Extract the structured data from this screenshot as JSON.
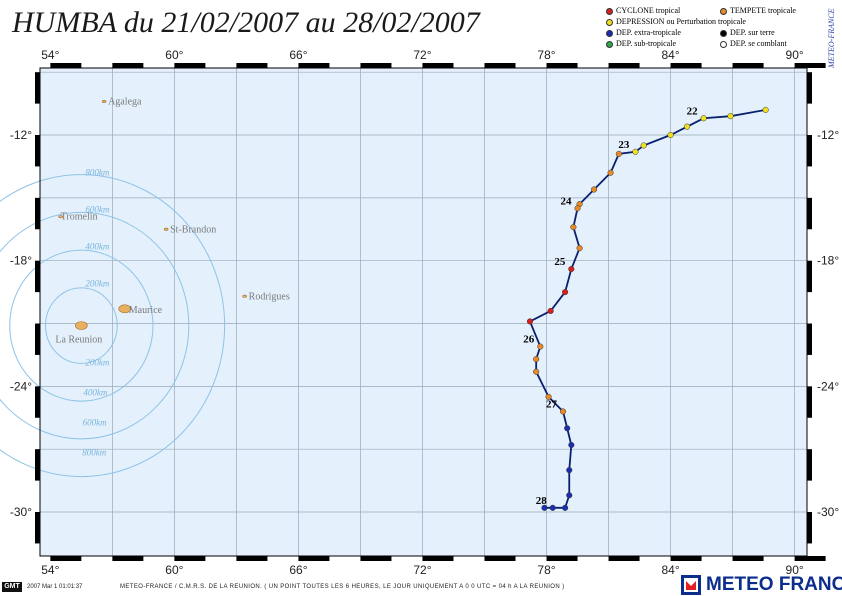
{
  "title": "HUMBA du 21/02/2007 au 28/02/2007",
  "legend": [
    {
      "label": "CYCLONE tropical",
      "color": "#d62020"
    },
    {
      "label": "TEMPETE tropicale",
      "color": "#e6892a"
    },
    {
      "label": "DEPRESSION ou Perturbation tropicale",
      "color": "#f0e020"
    },
    {
      "label": "DEP. extra-tropicale",
      "color": "#1a2fb0"
    },
    {
      "label": "DEP. sur terre",
      "color": "#000000"
    },
    {
      "label": "DEP. sub-tropicale",
      "color": "#2aa84a"
    },
    {
      "label": "DEP. se comblant",
      "color": "#ffffff"
    }
  ],
  "side_brand": "METEO-FRANCE",
  "axes": {
    "lon_ticks": [
      "54°",
      "60°",
      "66°",
      "72°",
      "78°",
      "84°",
      "90°"
    ],
    "lat_ticks": [
      "-12°",
      "-18°",
      "-24°",
      "-30°"
    ]
  },
  "islands": [
    {
      "name": "Agalega",
      "lon": 56.6,
      "lat": -10.4
    },
    {
      "name": "Tromelin",
      "lon": 54.5,
      "lat": -15.9
    },
    {
      "name": "St-Brandon",
      "lon": 59.6,
      "lat": -16.5
    },
    {
      "name": "Rodrigues",
      "lon": 63.4,
      "lat": -19.7
    },
    {
      "name": "Maurice",
      "lon": 57.6,
      "lat": -20.3
    },
    {
      "name": "La Reunion",
      "lon": 55.5,
      "lat": -21.1
    }
  ],
  "range_rings": [
    "200km",
    "400km",
    "600km",
    "800km"
  ],
  "track": [
    {
      "lon": 88.6,
      "lat": -10.8,
      "cat": "depression"
    },
    {
      "lon": 86.9,
      "lat": -11.1,
      "cat": "depression"
    },
    {
      "lon": 85.6,
      "lat": -11.2,
      "cat": "depression",
      "day": "22"
    },
    {
      "lon": 84.8,
      "lat": -11.6,
      "cat": "depression"
    },
    {
      "lon": 84.0,
      "lat": -12.0,
      "cat": "depression"
    },
    {
      "lon": 82.7,
      "lat": -12.5,
      "cat": "depression"
    },
    {
      "lon": 82.3,
      "lat": -12.8,
      "cat": "depression",
      "day": "23"
    },
    {
      "lon": 81.5,
      "lat": -12.9,
      "cat": "tempete"
    },
    {
      "lon": 81.1,
      "lat": -13.8,
      "cat": "tempete"
    },
    {
      "lon": 80.3,
      "lat": -14.6,
      "cat": "tempete"
    },
    {
      "lon": 79.6,
      "lat": -15.3,
      "cat": "tempete"
    },
    {
      "lon": 79.5,
      "lat": -15.5,
      "cat": "tempete",
      "day": "24"
    },
    {
      "lon": 79.3,
      "lat": -16.4,
      "cat": "tempete"
    },
    {
      "lon": 79.6,
      "lat": -17.4,
      "cat": "tempete"
    },
    {
      "lon": 79.2,
      "lat": -18.4,
      "cat": "cyclone",
      "day": "25"
    },
    {
      "lon": 78.9,
      "lat": -19.5,
      "cat": "cyclone"
    },
    {
      "lon": 78.2,
      "lat": -20.4,
      "cat": "cyclone"
    },
    {
      "lon": 77.2,
      "lat": -20.9,
      "cat": "cyclone"
    },
    {
      "lon": 77.7,
      "lat": -22.1,
      "cat": "tempete",
      "day": "26"
    },
    {
      "lon": 77.5,
      "lat": -22.7,
      "cat": "tempete"
    },
    {
      "lon": 77.5,
      "lat": -23.3,
      "cat": "tempete"
    },
    {
      "lon": 78.1,
      "lat": -24.5,
      "cat": "tempete"
    },
    {
      "lon": 78.8,
      "lat": -25.2,
      "cat": "tempete",
      "day": "27"
    },
    {
      "lon": 79.0,
      "lat": -26.0,
      "cat": "extra"
    },
    {
      "lon": 79.2,
      "lat": -26.8,
      "cat": "extra"
    },
    {
      "lon": 79.1,
      "lat": -28.0,
      "cat": "extra"
    },
    {
      "lon": 79.1,
      "lat": -29.2,
      "cat": "extra"
    },
    {
      "lon": 78.9,
      "lat": -29.8,
      "cat": "extra"
    },
    {
      "lon": 78.3,
      "lat": -29.8,
      "cat": "extra",
      "day": "28"
    },
    {
      "lon": 77.9,
      "lat": -29.8,
      "cat": "extra"
    }
  ],
  "footer": {
    "gmt": "GMT",
    "timestamp": "2007 Mar 1 01:01:37",
    "credit": "METEO-FRANCE / C.M.R.S. DE LA REUNION.  ( UN POINT TOUTES LES 6 HEURES, LE JOUR UNIQUEMENT A 0 0 UTC = 04 h A LA REUNION )",
    "brand": "METEO FRANCE"
  }
}
